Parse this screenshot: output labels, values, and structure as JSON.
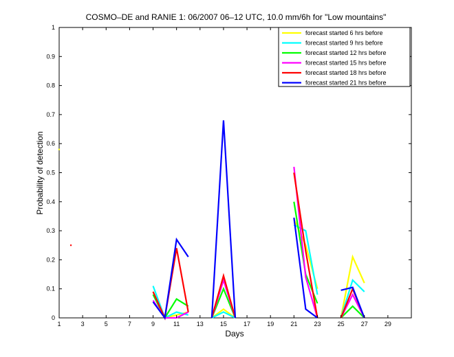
{
  "chart_data": {
    "type": "line",
    "title": "COSMO–DE and RANIE 1: 06/2007 06–12 UTC, 10.0 mm/6h for \"Low mountains\"",
    "xlabel": "Days",
    "ylabel": "Probability of detection",
    "xlim": [
      1,
      31
    ],
    "ylim": [
      0,
      1
    ],
    "xticks": [
      1,
      3,
      5,
      7,
      9,
      11,
      13,
      15,
      17,
      19,
      21,
      23,
      25,
      27,
      29
    ],
    "yticks": [
      0,
      0.1,
      0.2,
      0.3,
      0.4,
      0.5,
      0.6,
      0.7,
      0.8,
      0.9,
      1
    ],
    "legend_position": "top-right",
    "grid": false,
    "series": [
      {
        "name": "forecast started 6 hrs before",
        "color": "#ffff00",
        "segments": [
          [
            [
              1,
              0.58
            ]
          ],
          [
            [
              9,
              0.09
            ],
            [
              10,
              0.0
            ],
            [
              11,
              0.01
            ],
            [
              12,
              0.02
            ]
          ],
          [
            [
              14,
              0.0
            ],
            [
              15,
              0.03
            ],
            [
              16,
              0.0
            ]
          ],
          [
            [
              21,
              0.34
            ],
            [
              22,
              0.25
            ],
            [
              23,
              0.1
            ]
          ],
          [
            [
              25,
              0.0
            ],
            [
              26,
              0.21
            ],
            [
              27,
              0.12
            ]
          ]
        ]
      },
      {
        "name": "forecast started 9 hrs before",
        "color": "#00ffff",
        "segments": [
          [
            [
              9,
              0.11
            ],
            [
              10,
              0.0
            ],
            [
              11,
              0.02
            ],
            [
              12,
              0.01
            ]
          ],
          [
            [
              14,
              0.0
            ],
            [
              15,
              0.02
            ],
            [
              16,
              0.0
            ]
          ],
          [
            [
              21,
              0.32
            ],
            [
              22,
              0.3
            ],
            [
              23,
              0.08
            ]
          ],
          [
            [
              25,
              0.0
            ],
            [
              26,
              0.13
            ],
            [
              27,
              0.09
            ]
          ]
        ]
      },
      {
        "name": "forecast started 12 hrs before",
        "color": "#00ff00",
        "segments": [
          [
            [
              9,
              0.08
            ],
            [
              10,
              0.0
            ],
            [
              11,
              0.065
            ],
            [
              12,
              0.04
            ]
          ],
          [
            [
              14,
              0.0
            ],
            [
              15,
              0.1
            ],
            [
              16,
              0.0
            ]
          ],
          [
            [
              21,
              0.4
            ],
            [
              22,
              0.15
            ],
            [
              23,
              0.05
            ]
          ],
          [
            [
              25,
              0.0
            ],
            [
              26,
              0.04
            ],
            [
              27,
              0.0
            ]
          ]
        ]
      },
      {
        "name": "forecast started 15 hrs before",
        "color": "#ff00ff",
        "segments": [
          [
            [
              9,
              0.06
            ],
            [
              10,
              0.0
            ],
            [
              11,
              0.0
            ],
            [
              12,
              0.02
            ]
          ],
          [
            [
              14,
              0.0
            ],
            [
              15,
              0.13
            ],
            [
              16,
              0.0
            ]
          ],
          [
            [
              21,
              0.52
            ],
            [
              22,
              0.14
            ],
            [
              23,
              0.0
            ]
          ],
          [
            [
              25,
              0.0
            ],
            [
              26,
              0.08
            ],
            [
              27,
              0.0
            ]
          ]
        ]
      },
      {
        "name": "forecast started 18 hrs before",
        "color": "#ff0000",
        "segments": [
          [
            [
              2,
              0.25
            ]
          ],
          [
            [
              9,
              0.09
            ],
            [
              10,
              0.0
            ],
            [
              11,
              0.24
            ],
            [
              12,
              0.02
            ]
          ],
          [
            [
              14,
              0.0
            ],
            [
              15,
              0.145
            ],
            [
              16,
              0.0
            ]
          ],
          [
            [
              21,
              0.5
            ],
            [
              22,
              0.23
            ],
            [
              23,
              0.0
            ]
          ],
          [
            [
              25,
              0.0
            ],
            [
              26,
              0.1
            ],
            [
              27,
              0.0
            ]
          ]
        ]
      },
      {
        "name": "forecast started 21 hrs before",
        "color": "#0000ff",
        "segments": [
          [
            [
              9,
              0.055
            ],
            [
              10,
              0.0
            ],
            [
              11,
              0.27
            ],
            [
              12,
              0.21
            ]
          ],
          [
            [
              14,
              0.0
            ],
            [
              15,
              0.68
            ],
            [
              16,
              0.0
            ]
          ],
          [
            [
              21,
              0.345
            ],
            [
              22,
              0.03
            ],
            [
              23,
              0.0
            ]
          ],
          [
            [
              25,
              0.095
            ],
            [
              26,
              0.105
            ],
            [
              27,
              0.0
            ]
          ]
        ]
      }
    ]
  }
}
